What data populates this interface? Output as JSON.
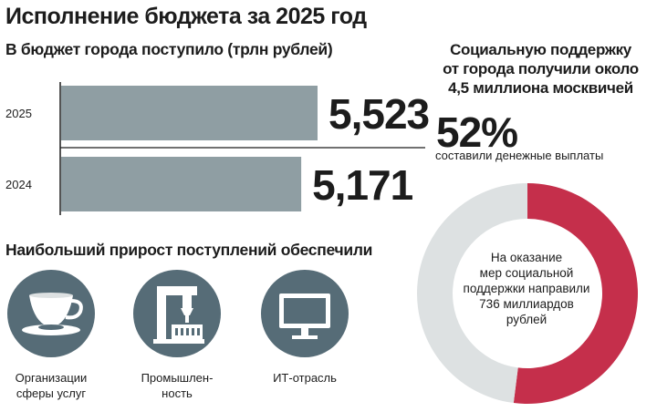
{
  "header": {
    "title": "Исполнение бюджета за 2025 год"
  },
  "revenue": {
    "subtitle": "В бюджет города поступило (трлн рублей)"
  },
  "chart_data": [
    {
      "type": "bar",
      "orientation": "horizontal",
      "categories": [
        "2025",
        "2024"
      ],
      "values": [
        5.523,
        5.171
      ],
      "value_labels": [
        "5,523",
        "5,171"
      ],
      "title": "",
      "xlabel": "",
      "ylabel": "",
      "xlim": [
        0,
        5.523
      ],
      "grid": false,
      "legend": "none",
      "colors": {
        "bar": "#8f9ea3",
        "axis": "#1c1c1c"
      }
    },
    {
      "type": "pie",
      "style": "donut",
      "labels": [
        "",
        ""
      ],
      "values": [
        52,
        48
      ],
      "colors": [
        "#c52f4b",
        "#dde1e2"
      ],
      "legend": "none"
    }
  ],
  "growth": {
    "title": "Наибольший прирост поступлений обеспечили",
    "items": [
      {
        "icon": "teacup-icon",
        "label_line1": "Организации",
        "label_line2": "сферы услуг"
      },
      {
        "icon": "industrial-machine-icon",
        "label_line1": "Промышлен-",
        "label_line2": "ность"
      },
      {
        "icon": "monitor-icon",
        "label_line1": "ИТ-отрасль",
        "label_line2": ""
      }
    ],
    "icon_bg": "#566c77"
  },
  "support": {
    "title_line1": "Социальную поддержку",
    "title_line2": "от города получили около",
    "title_line3": "4,5 миллиона москвичей",
    "percent": "52%",
    "percent_caption": "составили денежные выплаты",
    "center_line1": "На оказание",
    "center_line2": "мер социальной",
    "center_line3": "поддержки направили",
    "center_line4": "736 миллиардов",
    "center_line5": "рублей"
  }
}
